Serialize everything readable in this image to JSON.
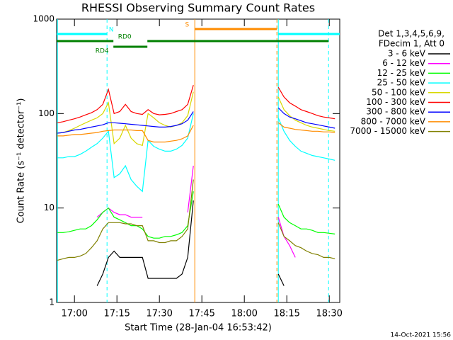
{
  "chart_data": {
    "type": "line",
    "title": "RHESSI Observing Summary Count Rates",
    "x_label": "Start Time (28-Jan-04 16:53:42)",
    "y_label": "Count Rate (s⁻¹ detector⁻¹)",
    "timestamp": "14-Oct-2021 15:56",
    "legend_title": [
      "Det 1,3,4,5,6,9,",
      "FDecim 1, Att 0"
    ],
    "log_y": true,
    "ylim": [
      1,
      1000
    ],
    "yticks": [
      1,
      10,
      100,
      1000
    ],
    "xlim": [
      "16:53:42",
      "18:33:42"
    ],
    "xticks": [
      "17:00",
      "17:15",
      "17:30",
      "17:45",
      "18:00",
      "18:15",
      "18:30"
    ],
    "x": [
      "16:54",
      "16:56",
      "16:58",
      "17:00",
      "17:02",
      "17:04",
      "17:06",
      "17:08",
      "17:10",
      "17:12",
      "17:14",
      "17:16",
      "17:18",
      "17:20",
      "17:22",
      "17:24",
      "17:26",
      "17:28",
      "17:30",
      "17:32",
      "17:34",
      "17:36",
      "17:38",
      "17:40",
      "17:42",
      "17:58",
      "18:12",
      "18:14",
      "18:16",
      "18:18",
      "18:20",
      "18:22",
      "18:24",
      "18:26",
      "18:28",
      "18:30",
      "18:32"
    ],
    "series": [
      {
        "name": "3 - 6 keV",
        "color": "#000000",
        "values": [
          null,
          null,
          null,
          null,
          null,
          null,
          null,
          1.5,
          2,
          3,
          3.5,
          3,
          3,
          3,
          3,
          3,
          1.8,
          1.8,
          1.8,
          1.8,
          1.8,
          1.8,
          2,
          3,
          12,
          null,
          2,
          1.5,
          null,
          null,
          null,
          null,
          null,
          null,
          null,
          null,
          null
        ]
      },
      {
        "name": "6 - 12 keV",
        "color": "#ff00ff",
        "values": [
          null,
          null,
          null,
          null,
          null,
          null,
          null,
          8,
          9,
          10,
          9,
          8.5,
          8.5,
          8,
          8,
          8,
          null,
          null,
          null,
          null,
          null,
          null,
          null,
          9,
          28,
          null,
          8,
          5,
          4,
          3,
          null,
          null,
          null,
          null,
          null,
          null,
          null
        ]
      },
      {
        "name": "12 - 25 keV",
        "color": "#00ff00",
        "values": [
          5.5,
          5.5,
          5.6,
          5.8,
          6,
          6,
          6.5,
          7.5,
          9,
          10,
          8,
          7.5,
          7,
          6.5,
          6.5,
          6,
          5,
          4.8,
          4.8,
          5,
          5,
          5.2,
          5.5,
          6.5,
          15,
          null,
          11,
          8,
          7,
          6.5,
          6,
          6,
          5.8,
          5.5,
          5.5,
          5.4,
          5.3
        ]
      },
      {
        "name": "25 - 50 keV",
        "color": "#00ffff",
        "values": [
          34,
          34,
          35,
          35,
          37,
          40,
          44,
          48,
          55,
          65,
          21,
          23,
          28,
          20,
          17,
          15,
          52,
          45,
          42,
          40,
          40,
          42,
          46,
          55,
          100,
          null,
          90,
          65,
          52,
          45,
          40,
          38,
          36,
          35,
          34,
          33,
          32
        ]
      },
      {
        "name": "50 - 100 keV",
        "color": "#d8d800",
        "values": [
          62,
          63,
          66,
          70,
          75,
          80,
          85,
          90,
          100,
          130,
          48,
          55,
          75,
          55,
          48,
          46,
          100,
          90,
          80,
          75,
          72,
          75,
          80,
          95,
          170,
          null,
          150,
          110,
          95,
          85,
          80,
          75,
          72,
          70,
          68,
          66,
          65
        ]
      },
      {
        "name": "100 - 300 keV",
        "color": "#ff0000",
        "values": [
          80,
          82,
          85,
          88,
          92,
          97,
          102,
          110,
          125,
          180,
          100,
          105,
          125,
          105,
          100,
          98,
          110,
          100,
          97,
          98,
          100,
          105,
          110,
          125,
          200,
          null,
          190,
          150,
          130,
          120,
          110,
          105,
          100,
          95,
          92,
          90,
          88
        ]
      },
      {
        "name": "300 - 800 keV",
        "color": "#0000ff",
        "values": [
          62,
          63,
          65,
          67,
          68,
          70,
          72,
          74,
          76,
          80,
          80,
          79,
          78,
          77,
          76,
          75,
          74,
          73,
          72,
          72,
          73,
          75,
          78,
          85,
          105,
          null,
          115,
          100,
          92,
          88,
          84,
          80,
          78,
          76,
          74,
          72,
          70
        ]
      },
      {
        "name": "800 - 7000 keV",
        "color": "#ff8c00",
        "values": [
          58,
          58,
          59,
          60,
          60,
          61,
          62,
          63,
          65,
          66,
          67,
          67,
          67,
          67,
          66,
          66,
          52,
          50,
          50,
          50,
          51,
          52,
          54,
          58,
          75,
          null,
          80,
          72,
          70,
          68,
          67,
          66,
          65,
          65,
          64,
          64,
          63
        ]
      },
      {
        "name": "7000 - 15000 keV",
        "color": "#808000",
        "values": [
          2.8,
          2.9,
          3,
          3,
          3.1,
          3.3,
          3.8,
          4.5,
          6,
          7,
          7,
          7,
          6.8,
          6.8,
          6.5,
          6.5,
          4.5,
          4.5,
          4.3,
          4.3,
          4.5,
          4.5,
          5,
          6,
          20,
          null,
          7,
          5,
          4.5,
          4,
          3.8,
          3.5,
          3.3,
          3.2,
          3,
          3,
          2.9
        ]
      }
    ],
    "vertical_lines": [
      {
        "x": "16:54",
        "color": "#00ffff",
        "dashed": false
      },
      {
        "x": "17:11:30",
        "color": "#00ffff",
        "dashed": true
      },
      {
        "x": "17:42:30",
        "color": "#ff8c00",
        "dashed": false
      },
      {
        "x": "18:11:30",
        "color": "#ff8c00",
        "dashed": true
      },
      {
        "x": "18:12",
        "color": "#00ffff",
        "dashed": false
      },
      {
        "x": "18:29:45",
        "color": "#00ffff",
        "dashed": true
      }
    ],
    "flags": [
      {
        "label": "N",
        "color": "#00ffff",
        "segments": [
          [
            "16:53:42",
            "17:11:30"
          ],
          [
            "18:12",
            "18:33:42"
          ]
        ]
      },
      {
        "label": "S",
        "color": "#ff8c00",
        "segments": [
          [
            "17:42:30",
            "18:11:30"
          ]
        ]
      },
      {
        "label": "RD0",
        "color": "#008000",
        "segments": [
          [
            "16:53:42",
            "17:13:45"
          ],
          [
            "17:25:45",
            "18:29:45"
          ]
        ]
      },
      {
        "label": "RD4",
        "color": "#008000",
        "segments": [
          [
            "17:13:45",
            "17:25:45"
          ]
        ]
      }
    ]
  }
}
